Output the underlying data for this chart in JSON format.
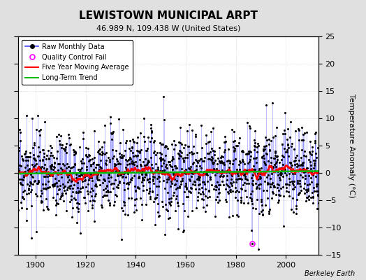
{
  "title": "LEWISTOWN MUNICIPAL ARPT",
  "subtitle": "46.989 N, 109.438 W (United States)",
  "ylabel": "Temperature Anomaly (°C)",
  "credit": "Berkeley Earth",
  "ylim": [
    -15,
    25
  ],
  "yticks": [
    -15,
    -10,
    -5,
    0,
    5,
    10,
    15,
    20,
    25
  ],
  "xlim": [
    1893,
    2013
  ],
  "xticks": [
    1900,
    1920,
    1940,
    1960,
    1980,
    2000
  ],
  "start_year": 1893,
  "end_year": 2012,
  "seed": 17,
  "bg_color": "#e0e0e0",
  "plot_bg_color": "#ffffff",
  "line_color": "#4444ff",
  "line_alpha": 0.6,
  "ma_color": "#ff0000",
  "trend_color": "#00bb00",
  "qc_color": "#ff00ff",
  "qc_year": 1986,
  "qc_month": 6,
  "qc_val": -13.0,
  "noise_std": 3.8,
  "title_fontsize": 11,
  "subtitle_fontsize": 8,
  "tick_fontsize": 8,
  "label_fontsize": 8,
  "legend_fontsize": 7
}
